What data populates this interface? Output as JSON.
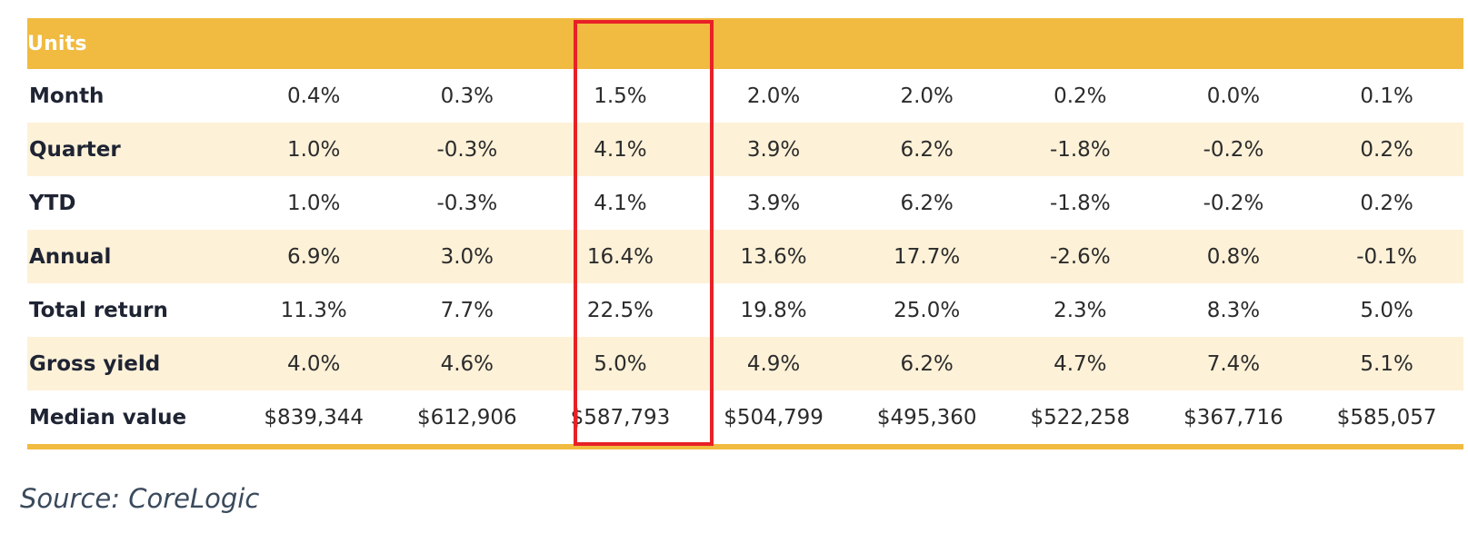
{
  "table": {
    "header_label": "Units",
    "rows": [
      {
        "label": "Month",
        "values": [
          "0.4%",
          "0.3%",
          "1.5%",
          "2.0%",
          "2.0%",
          "0.2%",
          "0.0%",
          "0.1%"
        ]
      },
      {
        "label": "Quarter",
        "values": [
          "1.0%",
          "-0.3%",
          "4.1%",
          "3.9%",
          "6.2%",
          "-1.8%",
          "-0.2%",
          "0.2%"
        ]
      },
      {
        "label": "YTD",
        "values": [
          "1.0%",
          "-0.3%",
          "4.1%",
          "3.9%",
          "6.2%",
          "-1.8%",
          "-0.2%",
          "0.2%"
        ]
      },
      {
        "label": "Annual",
        "values": [
          "6.9%",
          "3.0%",
          "16.4%",
          "13.6%",
          "17.7%",
          "-2.6%",
          "0.8%",
          "-0.1%"
        ]
      },
      {
        "label": "Total return",
        "values": [
          "11.3%",
          "7.7%",
          "22.5%",
          "19.8%",
          "25.0%",
          "2.3%",
          "8.3%",
          "5.0%"
        ]
      },
      {
        "label": "Gross yield",
        "values": [
          "4.0%",
          "4.6%",
          "5.0%",
          "4.9%",
          "6.2%",
          "4.7%",
          "7.4%",
          "5.1%"
        ]
      },
      {
        "label": "Median value",
        "values": [
          "$839,344",
          "$612,906",
          "$587,793",
          "$504,799",
          "$495,360",
          "$522,258",
          "$367,716",
          "$585,057"
        ]
      }
    ],
    "highlighted_column": 3
  },
  "colors": {
    "header_bg": "#F0BB40",
    "alt_row_bg": "#FDF1D8",
    "highlight_border": "#E82127"
  },
  "source_note": "Source: CoreLogic"
}
